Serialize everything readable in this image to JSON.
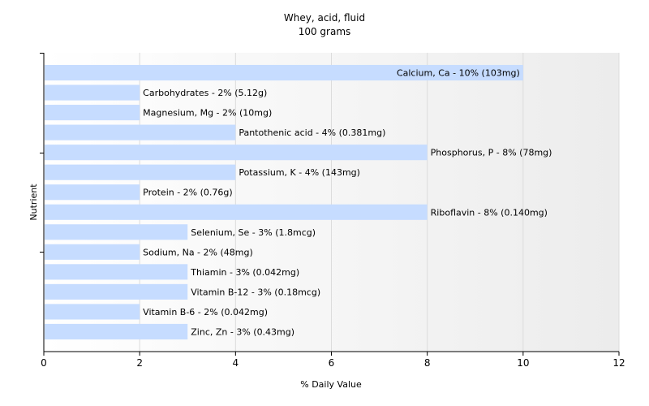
{
  "chart_data": {
    "type": "bar",
    "orientation": "horizontal",
    "title": "Whey, acid, fluid",
    "subtitle": "100 grams",
    "xlabel": "% Daily Value",
    "ylabel": "Nutrient",
    "xlim": [
      0,
      12
    ],
    "xticks": [
      0,
      2,
      4,
      6,
      8,
      10,
      12
    ],
    "grid": "vertical",
    "bar_color": "#c6dcff",
    "categories": [
      "Calcium, Ca",
      "Carbohydrates",
      "Magnesium, Mg",
      "Pantothenic acid",
      "Phosphorus, P",
      "Potassium, K",
      "Protein",
      "Riboflavin",
      "Selenium, Se",
      "Sodium, Na",
      "Thiamin",
      "Vitamin B-12",
      "Vitamin B-6",
      "Zinc, Zn"
    ],
    "values": [
      10,
      2,
      2,
      4,
      8,
      4,
      2,
      8,
      3,
      2,
      3,
      3,
      2,
      3
    ],
    "labels": [
      "Calcium, Ca - 10% (103mg)",
      "Carbohydrates - 2% (5.12g)",
      "Magnesium, Mg - 2% (10mg)",
      "Pantothenic acid - 4% (0.381mg)",
      "Phosphorus, P - 8% (78mg)",
      "Potassium, K - 4% (143mg)",
      "Protein - 2% (0.76g)",
      "Riboflavin - 8% (0.140mg)",
      "Selenium, Se - 3% (1.8mcg)",
      "Sodium, Na - 2% (48mg)",
      "Thiamin - 3% (0.042mg)",
      "Vitamin B-12 - 3% (0.18mcg)",
      "Vitamin B-6 - 2% (0.042mg)",
      "Zinc, Zn - 3% (0.43mg)"
    ]
  }
}
